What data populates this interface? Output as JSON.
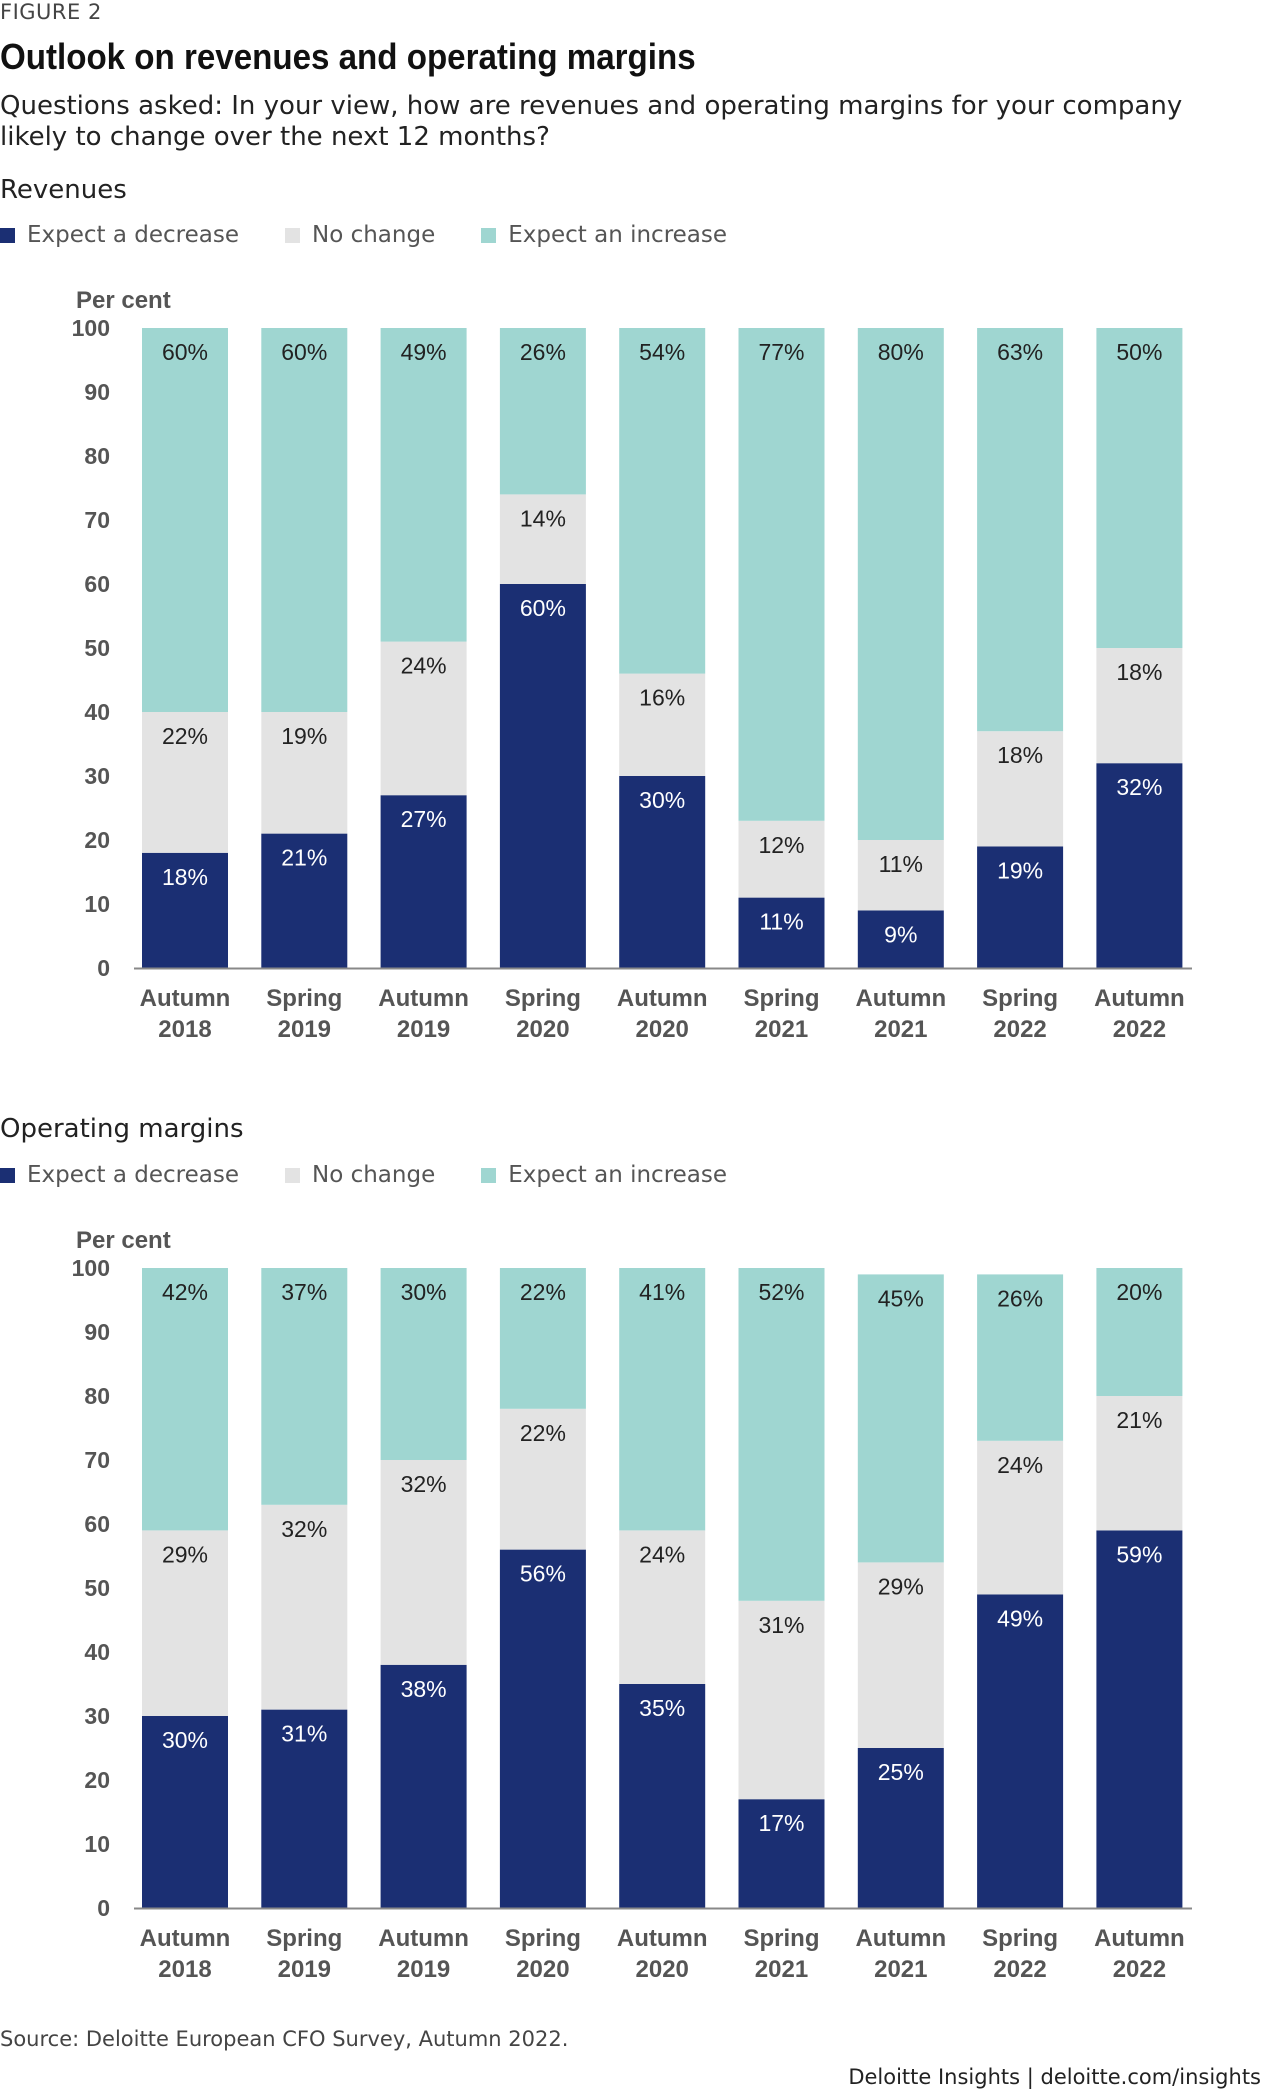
{
  "figure_label": "FIGURE 2",
  "title": "Outlook on revenues and operating margins",
  "subtitle": "Questions asked: In your view, how are revenues and operating margins for your company likely to change over the next 12 months?",
  "legend": [
    "Expect a decrease",
    "No change",
    "Expect an increase"
  ],
  "colors": {
    "decrease": "#1b2f73",
    "nochange": "#e3e3e3",
    "increase": "#9fd6d1",
    "axis": "#888888"
  },
  "source": "Source: Deloitte European CFO Survey, Autumn 2022.",
  "brand": "Deloitte Insights | deloitte.com/insights",
  "chart_data": [
    {
      "type": "bar",
      "stacked": true,
      "title": "Revenues",
      "ylabel": "Per cent",
      "ylim": [
        0,
        100
      ],
      "yticks": [
        0,
        10,
        20,
        30,
        40,
        50,
        60,
        70,
        80,
        90,
        100
      ],
      "categories": [
        [
          "Autumn",
          "2018"
        ],
        [
          "Spring",
          "2019"
        ],
        [
          "Autumn",
          "2019"
        ],
        [
          "Spring",
          "2020"
        ],
        [
          "Autumn",
          "2020"
        ],
        [
          "Spring",
          "2021"
        ],
        [
          "Autumn",
          "2021"
        ],
        [
          "Spring",
          "2022"
        ],
        [
          "Autumn",
          "2022"
        ]
      ],
      "series": [
        {
          "name": "Expect a decrease",
          "values": [
            18,
            21,
            27,
            60,
            30,
            11,
            9,
            19,
            32
          ]
        },
        {
          "name": "No change",
          "values": [
            22,
            19,
            24,
            14,
            16,
            12,
            11,
            18,
            18
          ]
        },
        {
          "name": "Expect an increase",
          "values": [
            60,
            60,
            49,
            26,
            54,
            77,
            80,
            63,
            50
          ]
        }
      ],
      "legend_position": "top-left",
      "grid": false
    },
    {
      "type": "bar",
      "stacked": true,
      "title": "Operating margins",
      "ylabel": "Per cent",
      "ylim": [
        0,
        100
      ],
      "yticks": [
        0,
        10,
        20,
        30,
        40,
        50,
        60,
        70,
        80,
        90,
        100
      ],
      "categories": [
        [
          "Autumn",
          "2018"
        ],
        [
          "Spring",
          "2019"
        ],
        [
          "Autumn",
          "2019"
        ],
        [
          "Spring",
          "2020"
        ],
        [
          "Autumn",
          "2020"
        ],
        [
          "Spring",
          "2021"
        ],
        [
          "Autumn",
          "2021"
        ],
        [
          "Spring",
          "2022"
        ],
        [
          "Autumn",
          "2022"
        ]
      ],
      "series": [
        {
          "name": "Expect a decrease",
          "values": [
            30,
            31,
            38,
            56,
            35,
            17,
            25,
            49,
            59
          ]
        },
        {
          "name": "No change",
          "values": [
            29,
            32,
            32,
            22,
            24,
            31,
            29,
            24,
            21
          ]
        },
        {
          "name": "Expect an increase",
          "values": [
            42,
            37,
            30,
            22,
            41,
            52,
            45,
            26,
            20
          ]
        }
      ],
      "legend_position": "top-left",
      "grid": false
    }
  ]
}
